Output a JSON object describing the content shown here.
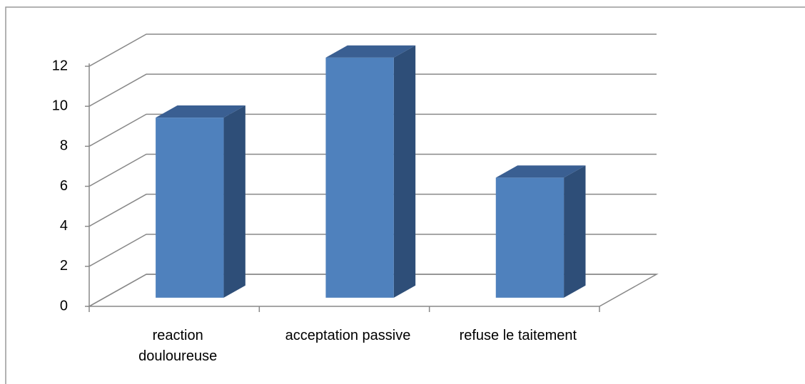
{
  "chart_data": {
    "type": "bar3d",
    "categories": [
      "reaction douloureuse",
      "acceptation passive",
      "refuse le taitement"
    ],
    "values": [
      9,
      12,
      6
    ],
    "colors": {
      "front": "#4f81bd",
      "side": "#2e4e78",
      "top": "#3a5f92"
    },
    "ylim": [
      0,
      12
    ],
    "yticks": [
      0,
      2,
      4,
      6,
      8,
      10,
      12
    ],
    "grid": true
  }
}
